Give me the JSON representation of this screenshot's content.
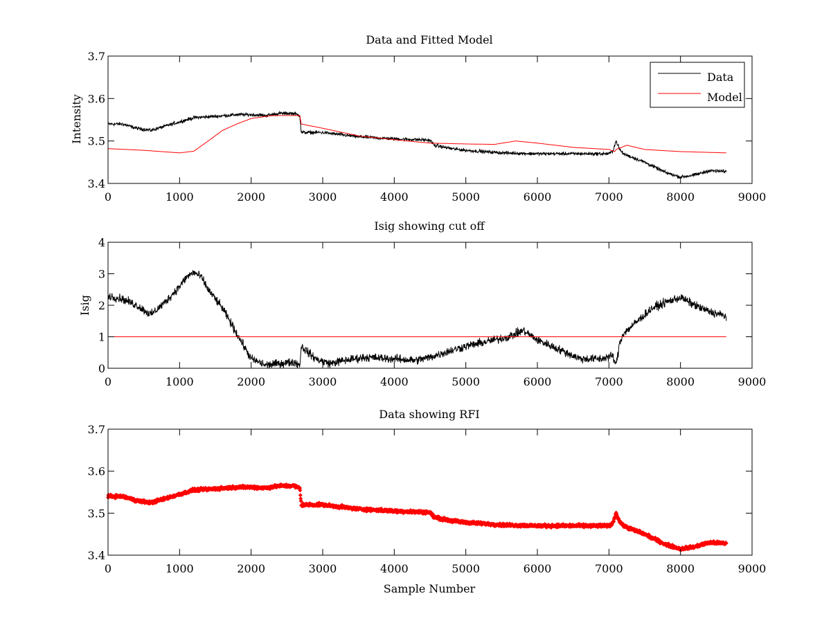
{
  "colors": {
    "data": "#000000",
    "model": "#ff0000",
    "rfi": "#ff0000",
    "axes": "#000000",
    "background": "#ffffff"
  },
  "chart_data": [
    {
      "type": "line",
      "title": "Data and Fitted Model",
      "xlabel": "",
      "ylabel": "Intensity",
      "xlim": [
        0,
        9000
      ],
      "ylim": [
        3.4,
        3.7
      ],
      "xticks": [
        "0",
        "1000",
        "2000",
        "3000",
        "4000",
        "5000",
        "6000",
        "7000",
        "8000",
        "9000"
      ],
      "yticks": [
        "3.4",
        "3.5",
        "3.6",
        "3.7"
      ],
      "legend": "top-right",
      "grid": false,
      "series": [
        {
          "name": "Data",
          "color": "#000000",
          "noise": 0.006,
          "x": [
            0,
            200,
            400,
            600,
            800,
            1000,
            1200,
            1500,
            1800,
            2000,
            2200,
            2400,
            2600,
            2680,
            2700,
            3000,
            3500,
            4000,
            4500,
            4560,
            4800,
            5000,
            5500,
            6000,
            6500,
            7000,
            7050,
            7100,
            7150,
            7200,
            7500,
            7800,
            8000,
            8200,
            8400,
            8640
          ],
          "y": [
            3.54,
            3.54,
            3.53,
            3.525,
            3.535,
            3.545,
            3.555,
            3.558,
            3.562,
            3.562,
            3.56,
            3.565,
            3.565,
            3.56,
            3.52,
            3.52,
            3.51,
            3.505,
            3.502,
            3.49,
            3.482,
            3.478,
            3.472,
            3.47,
            3.47,
            3.47,
            3.475,
            3.5,
            3.48,
            3.47,
            3.45,
            3.425,
            3.415,
            3.42,
            3.43,
            3.428
          ]
        },
        {
          "name": "Model",
          "color": "#ff0000",
          "noise": 0,
          "x": [
            0,
            500,
            1000,
            1200,
            1400,
            1600,
            1800,
            2000,
            2300,
            2680,
            2700,
            3000,
            3500,
            4000,
            4500,
            5000,
            5400,
            5700,
            6000,
            6500,
            7000,
            7080,
            7100,
            7250,
            7500,
            8000,
            8640
          ],
          "y": [
            3.482,
            3.478,
            3.472,
            3.476,
            3.5,
            3.525,
            3.54,
            3.553,
            3.56,
            3.56,
            3.54,
            3.53,
            3.512,
            3.503,
            3.495,
            3.493,
            3.492,
            3.5,
            3.495,
            3.485,
            3.48,
            3.475,
            3.48,
            3.49,
            3.48,
            3.475,
            3.472
          ]
        }
      ]
    },
    {
      "type": "line",
      "title": "Isig showing cut off",
      "xlabel": "",
      "ylabel": "Isig",
      "xlim": [
        0,
        9000
      ],
      "ylim": [
        0,
        4
      ],
      "xticks": [
        "0",
        "1000",
        "2000",
        "3000",
        "4000",
        "5000",
        "6000",
        "7000",
        "8000",
        "9000"
      ],
      "yticks": [
        "0",
        "1",
        "2",
        "3",
        "4"
      ],
      "grid": false,
      "cutoff": 1,
      "series": [
        {
          "color": "#000000",
          "noise": 0.2,
          "x": [
            0,
            200,
            400,
            600,
            800,
            1000,
            1100,
            1200,
            1300,
            1400,
            1600,
            1800,
            2000,
            2200,
            2400,
            2600,
            2680,
            2700,
            2900,
            3100,
            3300,
            3600,
            4000,
            4300,
            4500,
            4700,
            5000,
            5300,
            5600,
            5800,
            6000,
            6300,
            6600,
            6900,
            7050,
            7100,
            7150,
            7200,
            7400,
            7600,
            7800,
            8000,
            8200,
            8400,
            8640
          ],
          "y": [
            2.3,
            2.2,
            2.0,
            1.7,
            2.1,
            2.6,
            2.9,
            3.05,
            2.9,
            2.5,
            1.9,
            1.1,
            0.3,
            0.1,
            0.15,
            0.2,
            0.1,
            0.7,
            0.3,
            0.15,
            0.25,
            0.35,
            0.3,
            0.25,
            0.35,
            0.5,
            0.7,
            0.85,
            1.0,
            1.2,
            0.9,
            0.6,
            0.3,
            0.3,
            0.4,
            0.1,
            0.8,
            1.1,
            1.5,
            1.9,
            2.1,
            2.25,
            2.0,
            1.8,
            1.65
          ]
        }
      ]
    },
    {
      "type": "scatter",
      "title": "Data showing RFI",
      "xlabel": "Sample Number",
      "ylabel": "",
      "xlim": [
        0,
        9000
      ],
      "ylim": [
        3.4,
        3.7
      ],
      "xticks": [
        "0",
        "1000",
        "2000",
        "3000",
        "4000",
        "5000",
        "6000",
        "7000",
        "8000",
        "9000"
      ],
      "yticks": [
        "3.4",
        "3.5",
        "3.6",
        "3.7"
      ],
      "grid": false,
      "series": [
        {
          "color": "#ff0000",
          "noise": 0.005,
          "x": [
            0,
            200,
            400,
            600,
            800,
            1000,
            1200,
            1500,
            1800,
            2000,
            2200,
            2400,
            2600,
            2680,
            2700,
            3000,
            3500,
            4000,
            4500,
            4560,
            4800,
            5000,
            5500,
            6000,
            6500,
            7000,
            7050,
            7100,
            7150,
            7200,
            7500,
            7800,
            8000,
            8200,
            8400,
            8640
          ],
          "y": [
            3.54,
            3.54,
            3.53,
            3.525,
            3.535,
            3.545,
            3.555,
            3.558,
            3.562,
            3.562,
            3.56,
            3.565,
            3.565,
            3.56,
            3.52,
            3.52,
            3.51,
            3.505,
            3.502,
            3.49,
            3.482,
            3.478,
            3.472,
            3.47,
            3.47,
            3.47,
            3.475,
            3.5,
            3.48,
            3.47,
            3.45,
            3.425,
            3.415,
            3.42,
            3.43,
            3.428
          ]
        }
      ]
    }
  ]
}
